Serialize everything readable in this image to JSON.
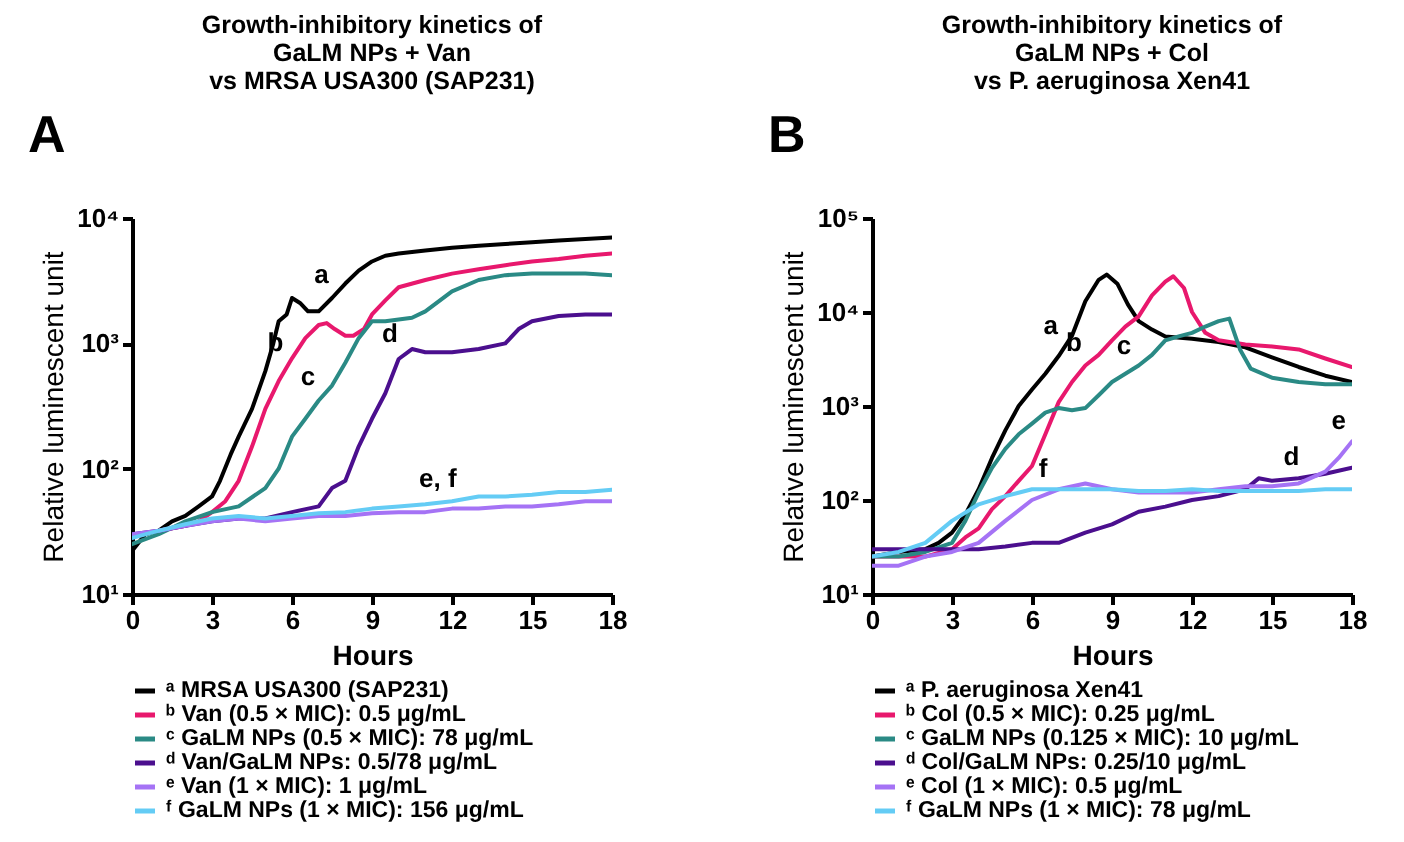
{
  "chart_data": [
    {
      "type": "line",
      "title": "Growth-inhibitory kinetics of\nGaLM NPs + Van\nvs MRSA USA300 (SAP231)",
      "xlabel": "Hours",
      "ylabel": "Relative luminescent unit",
      "log": "y",
      "grid": false,
      "legend": "bottom",
      "xlim": [
        0,
        18
      ],
      "xticks": [
        0,
        3,
        6,
        9,
        12,
        15,
        18
      ],
      "ylim": [
        10,
        10000
      ],
      "yticks": [
        {
          "value": 10,
          "label": "10¹"
        },
        {
          "value": 100,
          "label": "10²"
        },
        {
          "value": 1000,
          "label": "10³"
        },
        {
          "value": 10000,
          "label": "10⁴"
        }
      ],
      "annotations": [
        "A",
        {
          "text": "a",
          "x": 7.6,
          "y": 2450
        },
        {
          "text": "b",
          "x": 5.9,
          "y": 700
        },
        {
          "text": "c",
          "x": 7.1,
          "y": 370
        },
        {
          "text": "d",
          "x": 10.2,
          "y": 820
        },
        {
          "text": "e, f",
          "x": 12.4,
          "y": 57
        }
      ],
      "series": [
        {
          "name": "ᵃ MRSA USA300 (SAP231)",
          "color": "#000000",
          "x": [
            0,
            0.5,
            1,
            1.5,
            2,
            2.5,
            3,
            3.3,
            3.7,
            4,
            4.5,
            5,
            5.3,
            5.5,
            5.8,
            6,
            6.3,
            6.6,
            7,
            7.5,
            8,
            8.5,
            9,
            9.5,
            10,
            11,
            12,
            13,
            14,
            15,
            16,
            17,
            18
          ],
          "values": [
            22,
            30,
            32,
            38,
            42,
            50,
            60,
            80,
            130,
            180,
            300,
            600,
            1000,
            1500,
            1700,
            2300,
            2100,
            1800,
            1800,
            2300,
            3000,
            3800,
            4500,
            5000,
            5200,
            5500,
            5800,
            6000,
            6200,
            6400,
            6600,
            6800,
            7000
          ]
        },
        {
          "name": "ᵇ Van (0.5 × MIC): 0.5 μg/mL",
          "color": "#e8186d",
          "x": [
            1,
            2,
            2.5,
            3,
            3.5,
            4,
            4.5,
            5,
            5.5,
            6,
            6.5,
            7,
            7.3,
            7.6,
            8,
            8.3,
            8.7,
            9,
            9.5,
            10,
            11,
            12,
            13,
            14,
            15,
            16,
            17,
            18
          ],
          "values": [
            32,
            35,
            38,
            45,
            55,
            80,
            150,
            300,
            500,
            760,
            1100,
            1400,
            1450,
            1300,
            1150,
            1150,
            1300,
            1700,
            2200,
            2800,
            3200,
            3600,
            3900,
            4200,
            4500,
            4700,
            5000,
            5200
          ]
        },
        {
          "name": "ᶜ GaLM NPs (0.5 × MIC): 78 μg/mL",
          "color": "#2a8a85",
          "x": [
            0,
            1,
            2,
            3,
            4,
            5,
            5.5,
            6,
            6.5,
            7,
            7.5,
            8,
            8.5,
            9,
            9.5,
            10,
            10.5,
            11,
            12,
            13,
            14,
            15,
            16,
            17,
            18
          ],
          "values": [
            25,
            30,
            38,
            45,
            50,
            70,
            100,
            180,
            250,
            350,
            460,
            700,
            1100,
            1500,
            1500,
            1550,
            1600,
            1800,
            2600,
            3200,
            3500,
            3600,
            3600,
            3600,
            3500
          ]
        },
        {
          "name": "ᵈ Van/GaLM NPs: 0.5/78 μg/mL",
          "color": "#4b0f8e",
          "x": [
            0,
            1,
            2,
            3,
            4,
            5,
            6,
            7,
            7.5,
            8,
            8.5,
            9,
            9.5,
            10,
            10.5,
            11,
            12,
            13,
            14,
            14.5,
            15,
            16,
            17,
            18
          ],
          "values": [
            30,
            32,
            35,
            38,
            40,
            40,
            45,
            50,
            70,
            80,
            150,
            250,
            400,
            750,
            900,
            850,
            850,
            900,
            1000,
            1300,
            1500,
            1650,
            1700,
            1700
          ]
        },
        {
          "name": "ᵉ Van (1 × MIC): 1 μg/mL",
          "color": "#a573f5",
          "x": [
            0,
            1,
            2,
            3,
            4,
            5,
            6,
            7,
            8,
            9,
            10,
            11,
            12,
            13,
            14,
            15,
            16,
            17,
            18
          ],
          "values": [
            30,
            32,
            35,
            38,
            40,
            38,
            40,
            42,
            42,
            44,
            45,
            45,
            48,
            48,
            50,
            50,
            52,
            55,
            55
          ]
        },
        {
          "name": "ᶠ GaLM NPs (1 × MIC): 156 μg/mL",
          "color": "#64ccf5",
          "x": [
            0,
            1,
            2,
            3,
            4,
            5,
            6,
            7,
            8,
            9,
            10,
            11,
            12,
            13,
            14,
            15,
            16,
            17,
            18
          ],
          "values": [
            28,
            32,
            36,
            40,
            42,
            40,
            42,
            44,
            45,
            48,
            50,
            52,
            55,
            60,
            60,
            62,
            65,
            65,
            68
          ]
        }
      ]
    },
    {
      "type": "line",
      "title": "Growth-inhibitory kinetics of\nGaLM NPs + Col\nvs P. aeruginosa Xen41",
      "xlabel": "Hours",
      "ylabel": "Relative luminescent unit",
      "log": "y",
      "grid": false,
      "legend": "bottom",
      "xlim": [
        0,
        18
      ],
      "xticks": [
        0,
        3,
        6,
        9,
        12,
        15,
        18
      ],
      "ylim": [
        10,
        100000
      ],
      "yticks": [
        {
          "value": 10,
          "label": "10¹"
        },
        {
          "value": 100,
          "label": "10²"
        },
        {
          "value": 1000,
          "label": "10³"
        },
        {
          "value": 10000,
          "label": "10⁴"
        },
        {
          "value": 100000,
          "label": "10⁵"
        }
      ],
      "annotations": [
        "B",
        {
          "text": "a",
          "x": 7.2,
          "y": 4300
        },
        {
          "text": "b",
          "x": 8.1,
          "y": 2850
        },
        {
          "text": "c",
          "x": 9.95,
          "y": 2650
        },
        {
          "text": "d",
          "x": 16.25,
          "y": 175
        },
        {
          "text": "e",
          "x": 18,
          "y": 420
        },
        {
          "text": "f",
          "x": 6.8,
          "y": 130
        }
      ],
      "series": [
        {
          "name": "ᵃ P. aeruginosa Xen41",
          "color": "#000000",
          "x": [
            0,
            1,
            2,
            2.5,
            3,
            3.5,
            4,
            4.5,
            5,
            5.5,
            6,
            6.5,
            7,
            7.5,
            8,
            8.5,
            8.8,
            9.2,
            9.6,
            10,
            10.5,
            11,
            12,
            13,
            14,
            15,
            16,
            17,
            18
          ],
          "values": [
            25,
            28,
            30,
            35,
            45,
            70,
            130,
            280,
            550,
            1000,
            1500,
            2200,
            3400,
            5600,
            13000,
            22000,
            25000,
            20000,
            12000,
            8000,
            6500,
            5500,
            5200,
            4800,
            4200,
            3300,
            2600,
            2100,
            1800
          ]
        },
        {
          "name": "ᵇ Col (0.5 × MIC): 0.25 μg/mL",
          "color": "#e8186d",
          "x": [
            0,
            1,
            2,
            3,
            3.5,
            4,
            4.5,
            5,
            5.5,
            6,
            6.5,
            7,
            7.5,
            8,
            8.5,
            9,
            9.5,
            10,
            10.5,
            11,
            11.3,
            11.7,
            12,
            12.5,
            13,
            14,
            15,
            16,
            17,
            18
          ],
          "values": [
            25,
            25,
            25,
            30,
            40,
            50,
            80,
            110,
            160,
            230,
            500,
            1100,
            1800,
            2700,
            3500,
            5000,
            7000,
            9000,
            15000,
            21000,
            24000,
            18000,
            10000,
            6000,
            5000,
            4500,
            4300,
            4000,
            3200,
            2600
          ]
        },
        {
          "name": "ᶜ GaLM NPs (0.125 × MIC): 10 μg/mL",
          "color": "#2a8a85",
          "x": [
            0,
            1,
            2,
            3,
            3.5,
            4,
            4.5,
            5,
            5.5,
            6,
            6.5,
            7,
            7.5,
            8,
            8.5,
            9,
            9.5,
            10,
            10.5,
            11,
            11.5,
            12,
            12.5,
            13,
            13.4,
            13.8,
            14.2,
            15,
            16,
            17,
            18
          ],
          "values": [
            25,
            25,
            28,
            35,
            60,
            120,
            220,
            350,
            500,
            650,
            850,
            950,
            900,
            950,
            1300,
            1800,
            2200,
            2700,
            3500,
            5000,
            5500,
            6000,
            7000,
            8000,
            8500,
            4000,
            2500,
            2000,
            1800,
            1700,
            1700
          ]
        },
        {
          "name": "ᵈ Col/GaLM NPs: 0.25/10 μg/mL",
          "color": "#4b0f8e",
          "x": [
            0,
            1,
            2,
            3,
            4,
            5,
            6,
            7,
            8,
            9,
            10,
            11,
            12,
            13,
            14,
            14.5,
            15,
            16,
            17,
            18
          ],
          "values": [
            30,
            30,
            30,
            30,
            30,
            32,
            35,
            35,
            45,
            55,
            75,
            85,
            100,
            110,
            130,
            170,
            160,
            170,
            190,
            220
          ]
        },
        {
          "name": "ᵉ Col (1 × MIC): 0.5 μg/mL",
          "color": "#a573f5",
          "x": [
            0,
            1,
            2,
            3,
            4,
            5,
            6,
            7,
            8,
            9,
            10,
            11,
            12,
            13,
            14,
            15,
            16,
            17,
            17.5,
            18
          ],
          "values": [
            20,
            20,
            25,
            28,
            35,
            60,
            100,
            130,
            150,
            130,
            120,
            120,
            120,
            130,
            140,
            140,
            150,
            200,
            280,
            420
          ]
        },
        {
          "name": "ᶠ GaLM NPs (1 × MIC): 78 μg/mL",
          "color": "#64ccf5",
          "x": [
            0,
            1,
            2,
            3,
            4,
            5,
            6,
            7,
            8,
            9,
            10,
            11,
            12,
            13,
            14,
            15,
            16,
            17,
            18
          ],
          "values": [
            25,
            28,
            35,
            60,
            90,
            110,
            130,
            130,
            130,
            130,
            125,
            125,
            130,
            125,
            125,
            125,
            125,
            130,
            130
          ]
        }
      ]
    }
  ]
}
